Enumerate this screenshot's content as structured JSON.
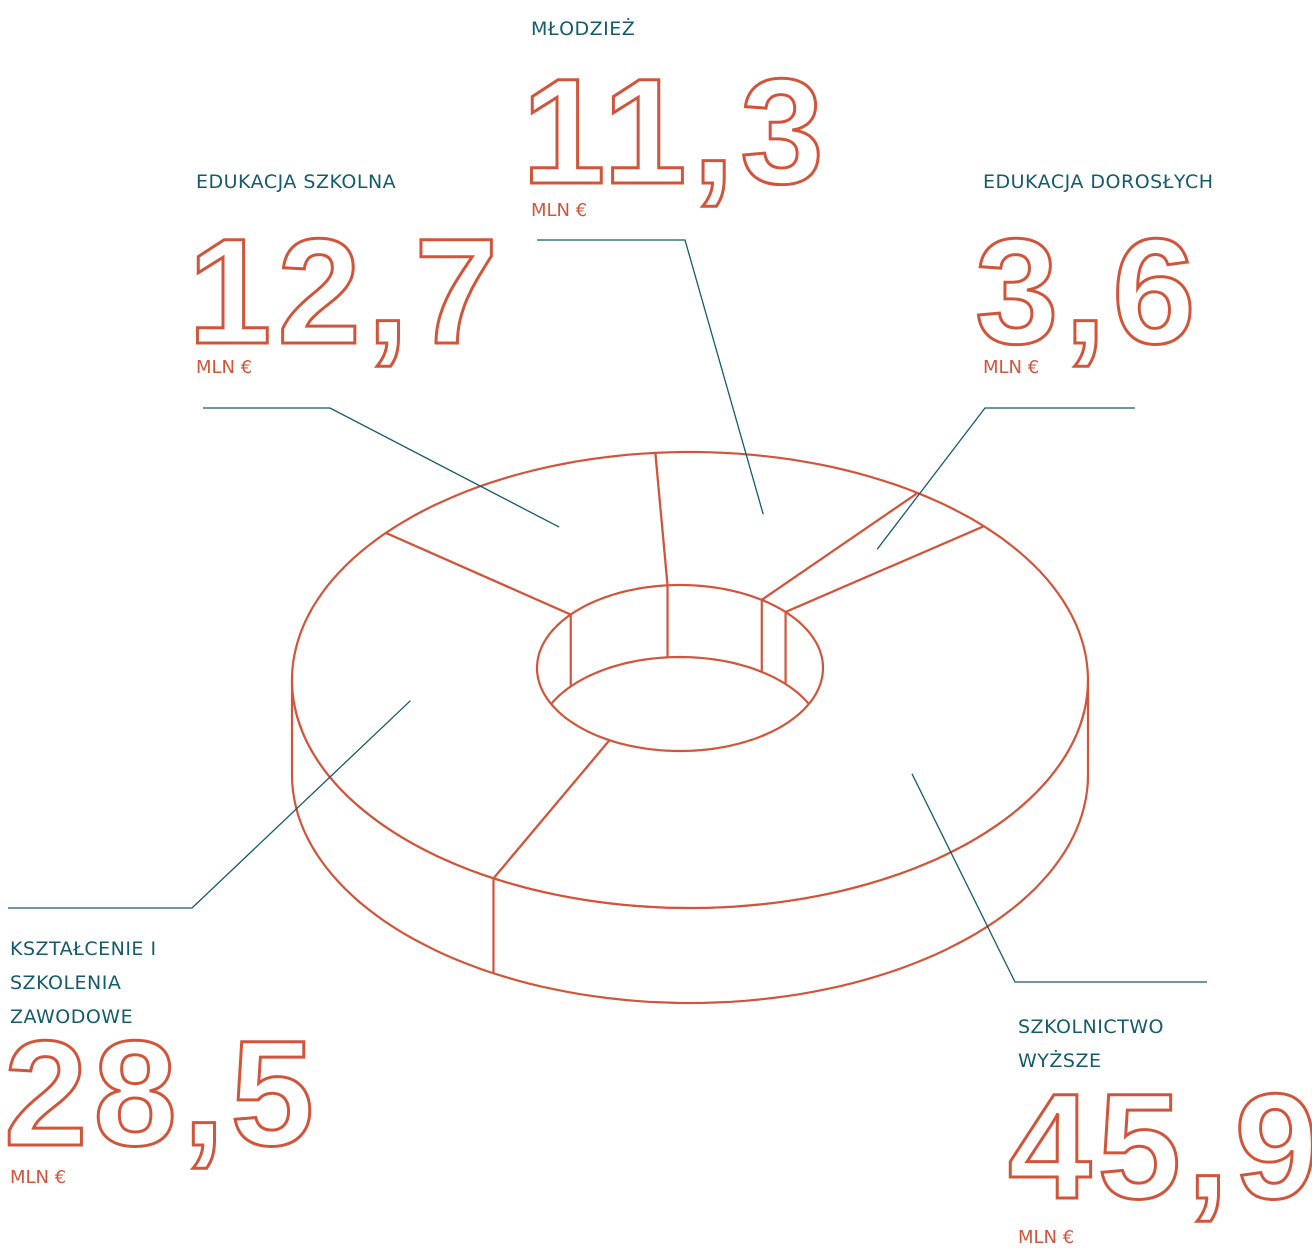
{
  "chart_data": {
    "type": "pie",
    "categories": [
      "MŁODZIEŻ",
      "EDUKACJA DOROSŁYCH",
      "SZKOLNICTWO WYŻSZE",
      "KSZTAŁCENIE I SZKOLENIA ZAWODOWE",
      "EDUKACJA SZKOLNA"
    ],
    "values": [
      11.3,
      3.6,
      45.9,
      28.5,
      12.7
    ],
    "value_labels": [
      "11,3",
      "3,6",
      "45,9",
      "28,5",
      "12,7"
    ],
    "unit": "MLN €",
    "color": "#d2553b",
    "label_color": "#155b6b"
  }
}
